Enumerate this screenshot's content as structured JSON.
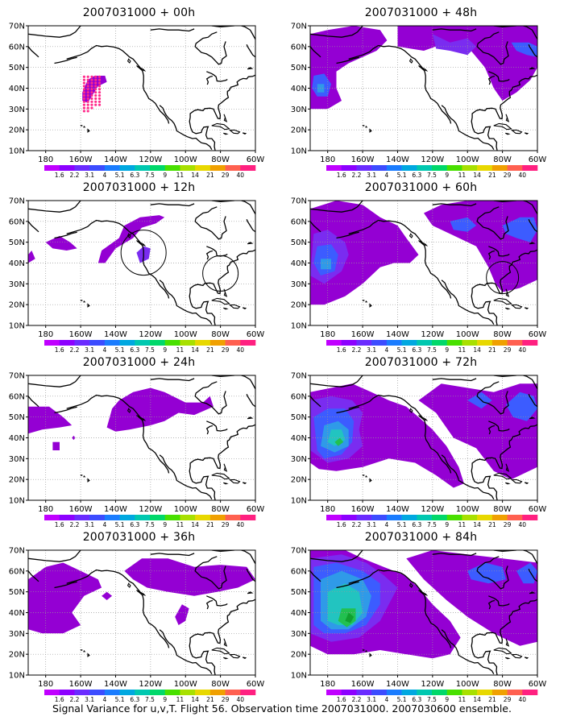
{
  "panels": [
    {
      "title": "2007031000 + 00h",
      "id": "p00"
    },
    {
      "title": "2007031000 + 48h",
      "id": "p48"
    },
    {
      "title": "2007031000 + 12h",
      "id": "p12"
    },
    {
      "title": "2007031000 + 60h",
      "id": "p60"
    },
    {
      "title": "2007031000 + 24h",
      "id": "p24"
    },
    {
      "title": "2007031000 + 72h",
      "id": "p72"
    },
    {
      "title": "2007031000 + 36h",
      "id": "p36"
    },
    {
      "title": "2007031000 + 84h",
      "id": "p84"
    }
  ],
  "lat_labels": [
    "70N",
    "60N",
    "50N",
    "40N",
    "30N",
    "20N",
    "10N"
  ],
  "lon_labels": [
    "180",
    "160W",
    "140W",
    "120W",
    "100W",
    "80W",
    "60W"
  ],
  "colorbar": {
    "levels": [
      "1.6",
      "2.2",
      "3.1",
      "4",
      "5.1",
      "6.3",
      "7.5",
      "9",
      "11",
      "14",
      "21",
      "29",
      "40"
    ],
    "colors": [
      "#c000ff",
      "#8c00ff",
      "#6a2bff",
      "#3c4cff",
      "#1a7cff",
      "#00a8e0",
      "#00c8b0",
      "#00d86a",
      "#48e000",
      "#a8e000",
      "#e8d800",
      "#f0a000",
      "#ff6050",
      "#ff2080"
    ]
  },
  "colors": {
    "purple": "#9400d3",
    "violet": "#7a2cf0",
    "blue": "#3c5cff",
    "lightblue": "#2f9ae8",
    "cyan": "#22c4c0",
    "green": "#22c050",
    "marker": "#ff2a8a"
  },
  "caption": "Signal Variance for u,v,T. Flight 56. Observation time 2007031000. 2007030600 ensemble."
}
